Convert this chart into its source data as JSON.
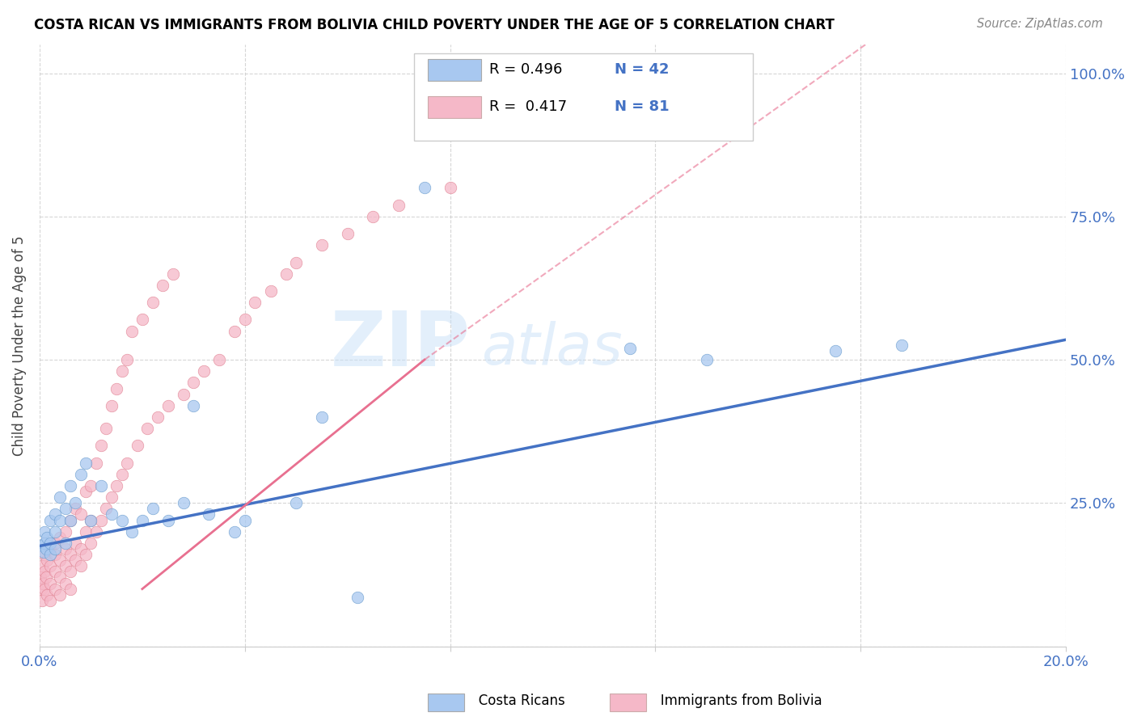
{
  "title": "COSTA RICAN VS IMMIGRANTS FROM BOLIVIA CHILD POVERTY UNDER THE AGE OF 5 CORRELATION CHART",
  "source": "Source: ZipAtlas.com",
  "ylabel": "Child Poverty Under the Age of 5",
  "xlim": [
    0.0,
    0.2
  ],
  "ylim": [
    0.0,
    1.05
  ],
  "color_blue": "#a8c8f0",
  "color_blue_edge": "#6699cc",
  "color_pink": "#f5b8c8",
  "color_pink_edge": "#e08090",
  "color_blue_line": "#4472c4",
  "color_pink_line": "#e87090",
  "color_text_blue": "#4472c4",
  "blue_trend": [
    0.0,
    0.175,
    0.2,
    0.535
  ],
  "pink_trend_solid": [
    0.02,
    0.1,
    0.075,
    0.5
  ],
  "pink_trend_dashed": [
    0.075,
    0.5,
    0.2,
    1.3
  ],
  "blue_x": [
    0.0005,
    0.0008,
    0.001,
    0.001,
    0.0012,
    0.0015,
    0.002,
    0.002,
    0.002,
    0.003,
    0.003,
    0.003,
    0.004,
    0.004,
    0.005,
    0.005,
    0.006,
    0.006,
    0.007,
    0.008,
    0.009,
    0.01,
    0.012,
    0.014,
    0.016,
    0.018,
    0.02,
    0.022,
    0.025,
    0.028,
    0.03,
    0.033,
    0.038,
    0.04,
    0.05,
    0.055,
    0.075,
    0.115,
    0.13,
    0.155,
    0.168,
    0.062
  ],
  "blue_y": [
    0.175,
    0.165,
    0.18,
    0.2,
    0.17,
    0.19,
    0.18,
    0.22,
    0.16,
    0.2,
    0.23,
    0.17,
    0.22,
    0.26,
    0.18,
    0.24,
    0.22,
    0.28,
    0.25,
    0.3,
    0.32,
    0.22,
    0.28,
    0.23,
    0.22,
    0.2,
    0.22,
    0.24,
    0.22,
    0.25,
    0.42,
    0.23,
    0.2,
    0.22,
    0.25,
    0.4,
    0.8,
    0.52,
    0.5,
    0.515,
    0.525,
    0.085
  ],
  "pink_x": [
    0.0002,
    0.0003,
    0.0005,
    0.0005,
    0.0007,
    0.001,
    0.001,
    0.001,
    0.0012,
    0.0015,
    0.0015,
    0.002,
    0.002,
    0.002,
    0.002,
    0.003,
    0.003,
    0.003,
    0.003,
    0.004,
    0.004,
    0.004,
    0.004,
    0.005,
    0.005,
    0.005,
    0.005,
    0.006,
    0.006,
    0.006,
    0.006,
    0.007,
    0.007,
    0.007,
    0.008,
    0.008,
    0.008,
    0.009,
    0.009,
    0.009,
    0.01,
    0.01,
    0.01,
    0.011,
    0.011,
    0.012,
    0.012,
    0.013,
    0.013,
    0.014,
    0.014,
    0.015,
    0.015,
    0.016,
    0.016,
    0.017,
    0.017,
    0.018,
    0.019,
    0.02,
    0.021,
    0.022,
    0.023,
    0.024,
    0.025,
    0.026,
    0.028,
    0.03,
    0.032,
    0.035,
    0.038,
    0.04,
    0.042,
    0.045,
    0.048,
    0.05,
    0.055,
    0.06,
    0.065,
    0.07,
    0.08
  ],
  "pink_y": [
    0.12,
    0.1,
    0.08,
    0.14,
    0.11,
    0.1,
    0.13,
    0.16,
    0.12,
    0.09,
    0.15,
    0.11,
    0.14,
    0.17,
    0.08,
    0.13,
    0.16,
    0.1,
    0.18,
    0.12,
    0.15,
    0.19,
    0.09,
    0.14,
    0.17,
    0.11,
    0.2,
    0.13,
    0.16,
    0.22,
    0.1,
    0.15,
    0.18,
    0.24,
    0.14,
    0.17,
    0.23,
    0.16,
    0.2,
    0.27,
    0.18,
    0.22,
    0.28,
    0.2,
    0.32,
    0.22,
    0.35,
    0.24,
    0.38,
    0.26,
    0.42,
    0.28,
    0.45,
    0.3,
    0.48,
    0.32,
    0.5,
    0.55,
    0.35,
    0.57,
    0.38,
    0.6,
    0.4,
    0.63,
    0.42,
    0.65,
    0.44,
    0.46,
    0.48,
    0.5,
    0.55,
    0.57,
    0.6,
    0.62,
    0.65,
    0.67,
    0.7,
    0.72,
    0.75,
    0.77,
    0.8
  ]
}
